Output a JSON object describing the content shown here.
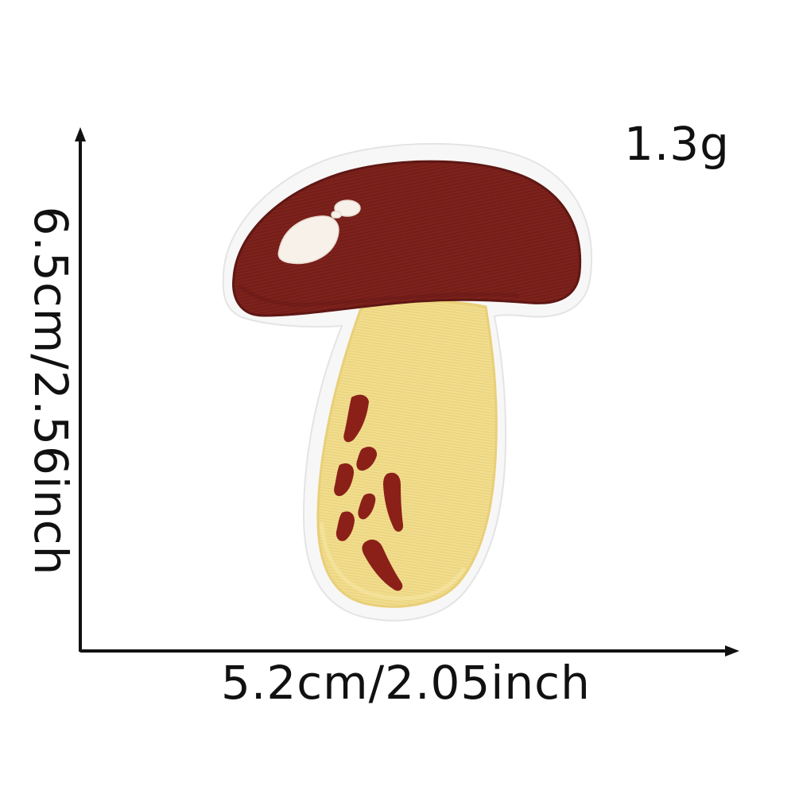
{
  "labels": {
    "weight": "1.3g",
    "height": "6.5cm/2.56inch",
    "width": "5.2cm/2.05inch"
  },
  "patch": {
    "subject": "mushroom embroidered patch",
    "colors": {
      "cap": "#7e221c",
      "cap_highlight": "#f7f1ea",
      "stem": "#f1dd8d",
      "spots": "#8b2019",
      "felt_border": "#f6f6f6",
      "axis": "#111111"
    }
  },
  "icons": {
    "vertical_arrow": "arrow-up-icon",
    "horizontal_arrow": "arrow-right-icon"
  }
}
